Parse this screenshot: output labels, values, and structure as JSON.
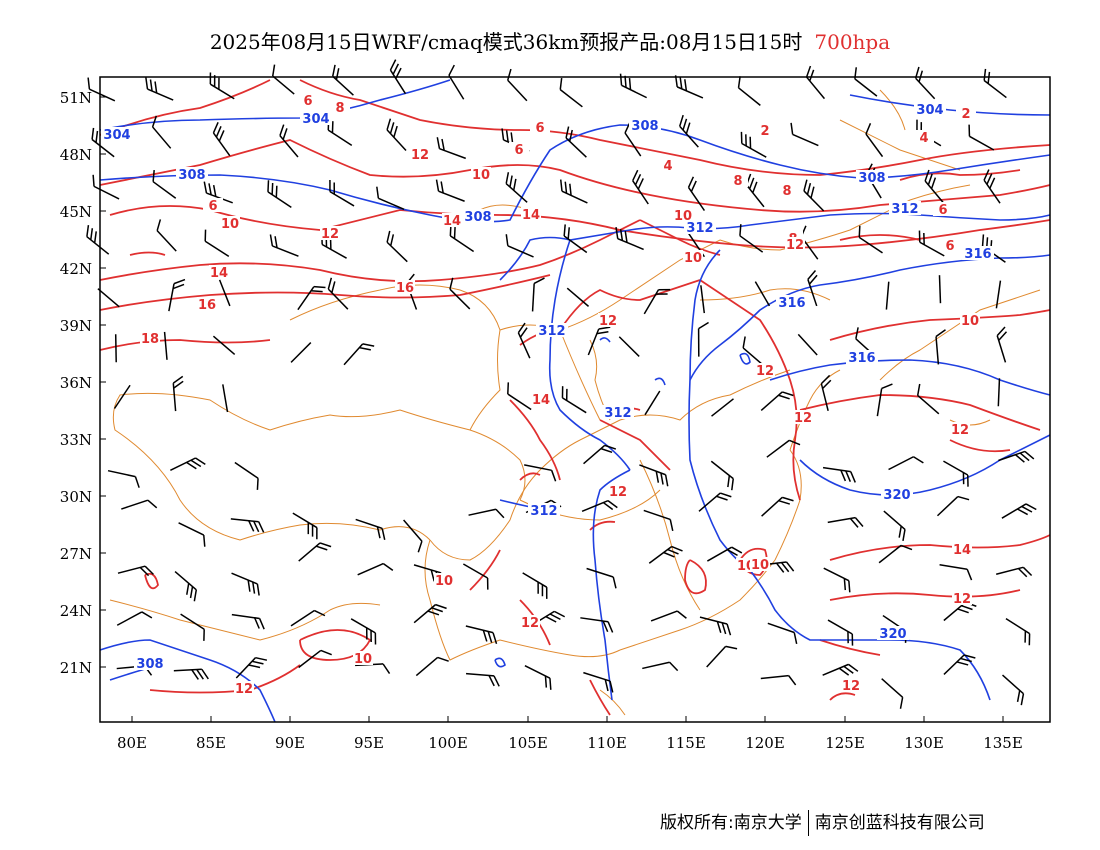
{
  "title": {
    "main": "2025年08月15日WRF/cmaq模式36km预报产品:08月15日15时",
    "level": "700hpa",
    "level_color": "#e03030"
  },
  "axes": {
    "lat_ticks": [
      "51N",
      "48N",
      "45N",
      "42N",
      "39N",
      "36N",
      "33N",
      "30N",
      "27N",
      "24N",
      "21N"
    ],
    "lon_ticks": [
      "80E",
      "85E",
      "90E",
      "95E",
      "100E",
      "105E",
      "110E",
      "115E",
      "120E",
      "125E",
      "130E",
      "135E"
    ]
  },
  "geopotential_contours": {
    "color": "#2040e0",
    "labels": [
      "304",
      "304",
      "308",
      "308",
      "308",
      "308",
      "312",
      "312",
      "312",
      "312",
      "312",
      "316",
      "316",
      "316",
      "320",
      "320",
      "308",
      "304"
    ]
  },
  "temperature_contours": {
    "color": "#e03030",
    "labels": [
      "6",
      "8",
      "6",
      "6",
      "2",
      "4",
      "4",
      "2",
      "12",
      "10",
      "8",
      "8",
      "8",
      "6",
      "6",
      "10",
      "12",
      "14",
      "14",
      "10",
      "6",
      "14",
      "16",
      "16",
      "18",
      "10",
      "10",
      "12",
      "14",
      "12",
      "12",
      "12",
      "12",
      "10",
      "10",
      "12",
      "10",
      "12",
      "14",
      "12",
      "12",
      "12",
      "10"
    ]
  },
  "boundary_color": "#e08a30",
  "footer": {
    "left": "版权所有:南京大学",
    "right": "南京创蓝科技有限公司"
  }
}
